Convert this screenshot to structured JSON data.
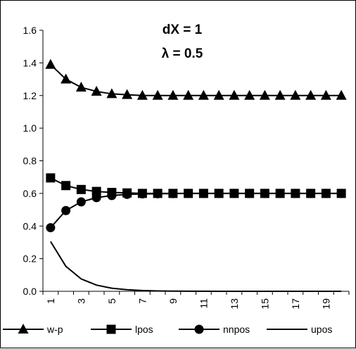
{
  "chart_data": {
    "type": "line",
    "title": "",
    "xlabel": "",
    "ylabel": "",
    "annotations": [
      "dX = 1",
      "λ = 0.5"
    ],
    "x": [
      1,
      2,
      3,
      4,
      5,
      6,
      7,
      8,
      9,
      10,
      11,
      12,
      13,
      14,
      15,
      16,
      17,
      18,
      19,
      20
    ],
    "x_tick_labels": [
      "1",
      "3",
      "5",
      "7",
      "9",
      "11",
      "13",
      "15",
      "17",
      "19"
    ],
    "ylim": [
      0,
      1.6
    ],
    "y_tick_labels": [
      "0.0",
      "0.2",
      "0.4",
      "0.6",
      "0.8",
      "1.0",
      "1.2",
      "1.4",
      "1.6"
    ],
    "grid": false,
    "legend_position": "bottom",
    "series": [
      {
        "name": "w-p",
        "marker": "triangle",
        "values": [
          1.39,
          1.3,
          1.25,
          1.225,
          1.21,
          1.205,
          1.2,
          1.2,
          1.2,
          1.2,
          1.2,
          1.2,
          1.2,
          1.2,
          1.2,
          1.2,
          1.2,
          1.2,
          1.2,
          1.2
        ]
      },
      {
        "name": "lpos",
        "marker": "square",
        "values": [
          0.695,
          0.648,
          0.624,
          0.612,
          0.606,
          0.603,
          0.6,
          0.6,
          0.6,
          0.6,
          0.6,
          0.6,
          0.6,
          0.6,
          0.6,
          0.6,
          0.6,
          0.6,
          0.6,
          0.6
        ]
      },
      {
        "name": "nnpos",
        "marker": "circle",
        "values": [
          0.39,
          0.495,
          0.548,
          0.574,
          0.587,
          0.594,
          0.597,
          0.598,
          0.599,
          0.6,
          0.6,
          0.6,
          0.6,
          0.6,
          0.6,
          0.6,
          0.6,
          0.6,
          0.6,
          0.6
        ]
      },
      {
        "name": "upos",
        "marker": "none",
        "values": [
          0.305,
          0.153,
          0.076,
          0.038,
          0.019,
          0.0095,
          0.0048,
          0.0024,
          0.0012,
          0.0006,
          0.0003,
          0.0002,
          0.0001,
          0.0,
          0.0,
          0.0,
          0.0,
          0.0,
          0.0,
          0.0
        ]
      }
    ]
  }
}
